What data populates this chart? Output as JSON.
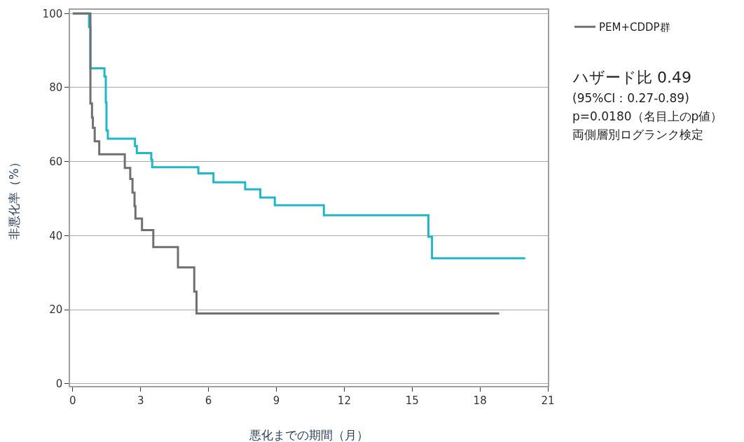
{
  "chart_data": {
    "type": "step",
    "xlabel": "悪化までの期間（月）",
    "ylabel": "非悪化率（%）",
    "xlim": [
      -0.12,
      21
    ],
    "xticks": [
      0,
      3,
      6,
      9,
      12,
      15,
      18,
      21
    ],
    "ylim": [
      -0.6,
      101
    ],
    "yticks": [
      0,
      20,
      40,
      60,
      80,
      100
    ],
    "grid": "y",
    "legend": "top right",
    "marker": "none",
    "line_style": "solid",
    "series": [
      {
        "color": "#1fb8c8",
        "x": [
          0,
          0.72,
          0.78,
          1.4,
          1.46,
          1.49,
          1.55,
          2.75,
          2.83,
          3.47,
          3.51,
          5.55,
          6.22,
          7.62,
          8.29,
          8.93,
          11.1,
          15.72,
          15.88,
          20.0
        ],
        "values": [
          100,
          96.3,
          85.2,
          83.0,
          76.0,
          68.4,
          66.2,
          64.2,
          62.3,
          60.5,
          58.5,
          56.8,
          54.4,
          52.5,
          50.3,
          48.2,
          45.5,
          39.7,
          33.9,
          33.9
        ]
      },
      {
        "name": "PEM+CDDP群",
        "color": "#707070",
        "x": [
          0,
          0.78,
          0.85,
          0.89,
          0.97,
          1.17,
          2.3,
          2.54,
          2.64,
          2.73,
          2.77,
          3.06,
          3.56,
          4.65,
          5.37,
          5.47,
          18.85
        ],
        "values": [
          100,
          75.7,
          71.9,
          69.1,
          65.5,
          62.0,
          58.3,
          55.3,
          51.6,
          48.0,
          44.6,
          41.5,
          36.9,
          31.4,
          24.9,
          19.0,
          19.0
        ]
      }
    ],
    "annotations": [
      "ハザード比 0.49",
      "(95%CI：0.27-0.89)",
      "p=0.0180（名目上のp値）",
      "両側層別ログランク検定"
    ]
  }
}
